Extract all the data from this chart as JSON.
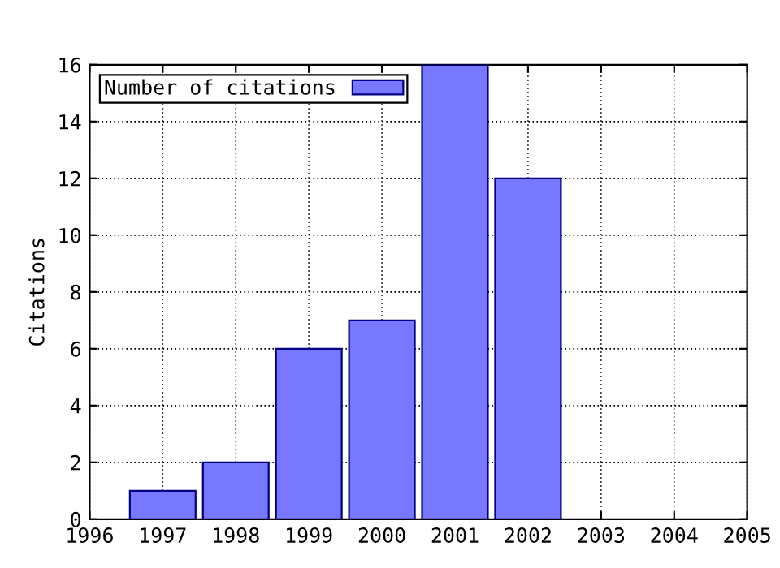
{
  "chart_data": {
    "type": "bar",
    "ylabel": "Citations",
    "x": [
      1997,
      1998,
      1999,
      2000,
      2001,
      2002
    ],
    "series": [
      {
        "name": "Number of citations",
        "color": "#7777ff",
        "values": [
          1,
          2,
          6,
          7,
          16,
          12
        ]
      }
    ],
    "xlim": [
      1996,
      2005
    ],
    "xticks": [
      1996,
      1997,
      1998,
      1999,
      2000,
      2001,
      2002,
      2003,
      2004,
      2005
    ],
    "ylim": [
      0,
      16
    ],
    "yticks": [
      0,
      2,
      4,
      6,
      8,
      10,
      12,
      14,
      16
    ],
    "grid": true,
    "legend": "top left"
  }
}
